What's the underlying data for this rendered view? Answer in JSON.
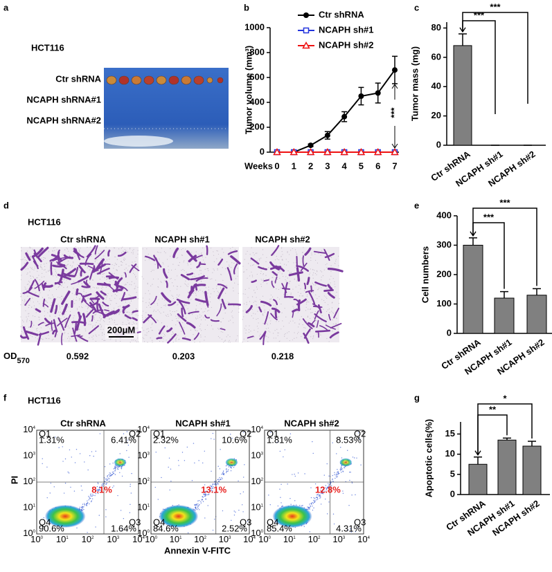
{
  "panel_labels": [
    "a",
    "b",
    "c",
    "d",
    "e",
    "f",
    "g"
  ],
  "panel_a": {
    "cell_line": "HCT116",
    "rows": [
      "Ctr shRNA",
      "NCAPH shRNA#1",
      "NCAPH shRNA#2"
    ]
  },
  "panel_d": {
    "cell_line": "HCT116",
    "titles": [
      "Ctr shRNA",
      "NCAPH sh#1",
      "NCAPH sh#2"
    ],
    "scale_bar": "200μM",
    "od_label": "OD",
    "od_subscript": "570",
    "od_values": [
      0.592,
      0.203,
      0.218
    ]
  },
  "panel_f": {
    "cell_line": "HCT116",
    "ylabel": "PI",
    "xlabel": "Annexin V-FITC",
    "tick_base": "10",
    "tick_exponents": [
      0,
      1,
      2,
      3,
      4
    ],
    "plots": [
      {
        "title": "Ctr shRNA",
        "quadrants": [
          "Q1",
          "Q2",
          "Q3",
          "Q4"
        ],
        "percents": [
          "1.31%",
          "6.41%",
          "1.64%",
          "90.6%"
        ],
        "apoptotic": "8.1%"
      },
      {
        "title": "NCAPH sh#1",
        "quadrants": [
          "Q1",
          "Q2",
          "Q3",
          "Q4"
        ],
        "percents": [
          "2.32%",
          "10.6%",
          "2.52%",
          "84.6%"
        ],
        "apoptotic": "13.1%"
      },
      {
        "title": "NCAPH sh#2",
        "quadrants": [
          "Q1",
          "Q2",
          "Q3",
          "Q4"
        ],
        "percents": [
          "1.81%",
          "8.53%",
          "4.31%",
          "85.4%"
        ],
        "apoptotic": "12.8%"
      }
    ]
  },
  "chart_data": [
    {
      "type": "line",
      "ylabel": "Tumor volume (mm³)",
      "xlabel": "Weeks",
      "x": [
        0,
        1,
        2,
        3,
        4,
        5,
        6,
        7
      ],
      "xlim": [
        0,
        7
      ],
      "xticks": [
        0,
        1,
        2,
        3,
        4,
        5,
        6,
        7
      ],
      "ylim": [
        0,
        1000
      ],
      "yticks": [
        0,
        200,
        400,
        600,
        800,
        1000
      ],
      "series": [
        {
          "name": "Ctr shRNA",
          "color": "#000000",
          "marker": "circle",
          "values": [
            0,
            0,
            55,
            135,
            285,
            450,
            475,
            660
          ],
          "errors": [
            0,
            0,
            10,
            30,
            40,
            70,
            80,
            110
          ]
        },
        {
          "name": "NCAPH sh#1",
          "color": "#2233dd",
          "marker": "square",
          "values": [
            0,
            0,
            0,
            0,
            0,
            0,
            0,
            0
          ],
          "errors": [
            0,
            0,
            0,
            0,
            0,
            0,
            0,
            0
          ]
        },
        {
          "name": "NCAPH sh#2",
          "color": "#ee1111",
          "marker": "triangle",
          "values": [
            0,
            0,
            0,
            0,
            0,
            0,
            0,
            0
          ],
          "errors": [
            0,
            0,
            0,
            0,
            0,
            0,
            0,
            0
          ]
        }
      ],
      "annotation": "***"
    },
    {
      "type": "bar",
      "ylabel": "Tumor mass (mg)",
      "categories": [
        "Ctr shRNA",
        "NCAPH sh#1",
        "NCAPH sh#2"
      ],
      "values": [
        68,
        0,
        0
      ],
      "errors": [
        8,
        0,
        0
      ],
      "color": "#808080",
      "ylim": [
        0,
        84
      ],
      "yticks": [
        0,
        20,
        40,
        60,
        80
      ],
      "significance": [
        "***",
        "***"
      ]
    },
    {
      "type": "bar",
      "ylabel": "Cell numbers",
      "categories": [
        "Ctr shRNA",
        "NCAPH sh#1",
        "NCAPH sh#2"
      ],
      "values": [
        300,
        120,
        130
      ],
      "errors": [
        25,
        22,
        22
      ],
      "color": "#808080",
      "ylim": [
        0,
        400
      ],
      "yticks": [
        0,
        100,
        200,
        300,
        400
      ],
      "significance": [
        "***",
        "***"
      ]
    },
    {
      "type": "bar",
      "ylabel": "Apoptotic cells(%)",
      "categories": [
        "Ctr shRNA",
        "NCAPH sh#1",
        "NCAPH sh#2"
      ],
      "values": [
        7.5,
        13.5,
        12
      ],
      "errors": [
        1.8,
        0.5,
        1.2
      ],
      "color": "#808080",
      "ylim": [
        0,
        18
      ],
      "yticks": [
        0,
        5,
        10,
        15
      ],
      "significance": [
        "**",
        "*"
      ]
    }
  ]
}
